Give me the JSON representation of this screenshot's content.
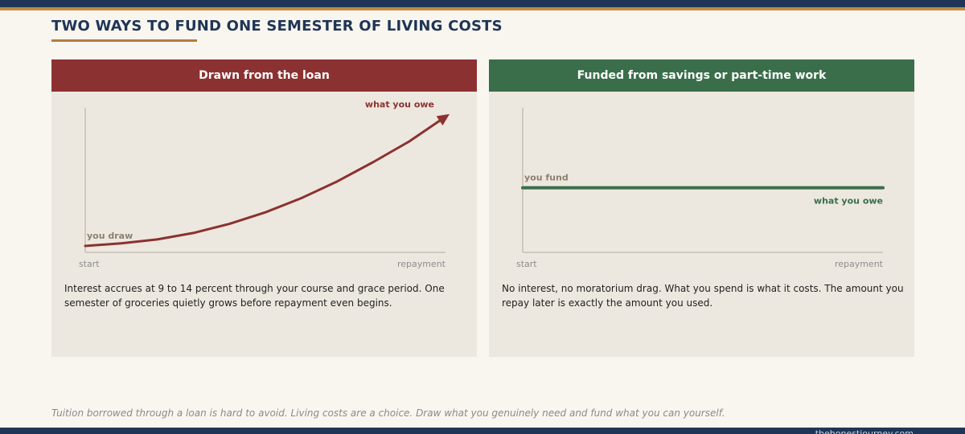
{
  "page": {
    "title": "TWO WAYS TO FUND ONE SEMESTER OF LIVING COSTS",
    "footer_note": "Tuition borrowed through a loan is hard to avoid. Living costs are a choice. Draw what you genuinely need and fund what you can yourself.",
    "site": "thehonestjourney.com"
  },
  "colors": {
    "navy": "#1f3557",
    "gold": "#c08a3e",
    "loan_red": "#8c3131",
    "savings_green": "#3a6e4a",
    "panel_bg": "#ede8df"
  },
  "panels": [
    {
      "header": "Drawn from the loan",
      "description": "Interest accrues at 9 to 14 percent through your course and grace period. One semester of groceries quietly grows before repayment even begins."
    },
    {
      "header": "Funded from savings or part-time work",
      "description": "No interest, no moratorium drag. What you spend is what it costs. The amount you repay later is exactly the amount you used."
    }
  ],
  "chart_data": [
    {
      "type": "line",
      "title": "Drawn from the loan",
      "xlabel": "",
      "ylabel": "",
      "x_ticks": [
        "start",
        "repayment"
      ],
      "x": [
        0,
        0.1,
        0.2,
        0.3,
        0.4,
        0.5,
        0.6,
        0.7,
        0.8,
        0.9,
        1.0
      ],
      "y": [
        0.05,
        0.07,
        0.1,
        0.15,
        0.22,
        0.31,
        0.42,
        0.55,
        0.7,
        0.86,
        1.05
      ],
      "xlim": [
        0,
        1
      ],
      "ylim": [
        0,
        1.12
      ],
      "arrow_at_end": true,
      "annotations": [
        {
          "text": "you draw",
          "at": "start"
        },
        {
          "text": "what you owe",
          "at": "end"
        }
      ],
      "color": "#8c3131"
    },
    {
      "type": "line",
      "title": "Funded from savings or part-time work",
      "xlabel": "",
      "ylabel": "",
      "x_ticks": [
        "start",
        "repayment"
      ],
      "x": [
        0,
        1
      ],
      "y": [
        0.5,
        0.5
      ],
      "xlim": [
        0,
        1
      ],
      "ylim": [
        0,
        1.12
      ],
      "arrow_at_end": false,
      "annotations": [
        {
          "text": "you fund",
          "at": "start"
        },
        {
          "text": "what you owe",
          "at": "end"
        }
      ],
      "color": "#3a6e4a"
    }
  ]
}
